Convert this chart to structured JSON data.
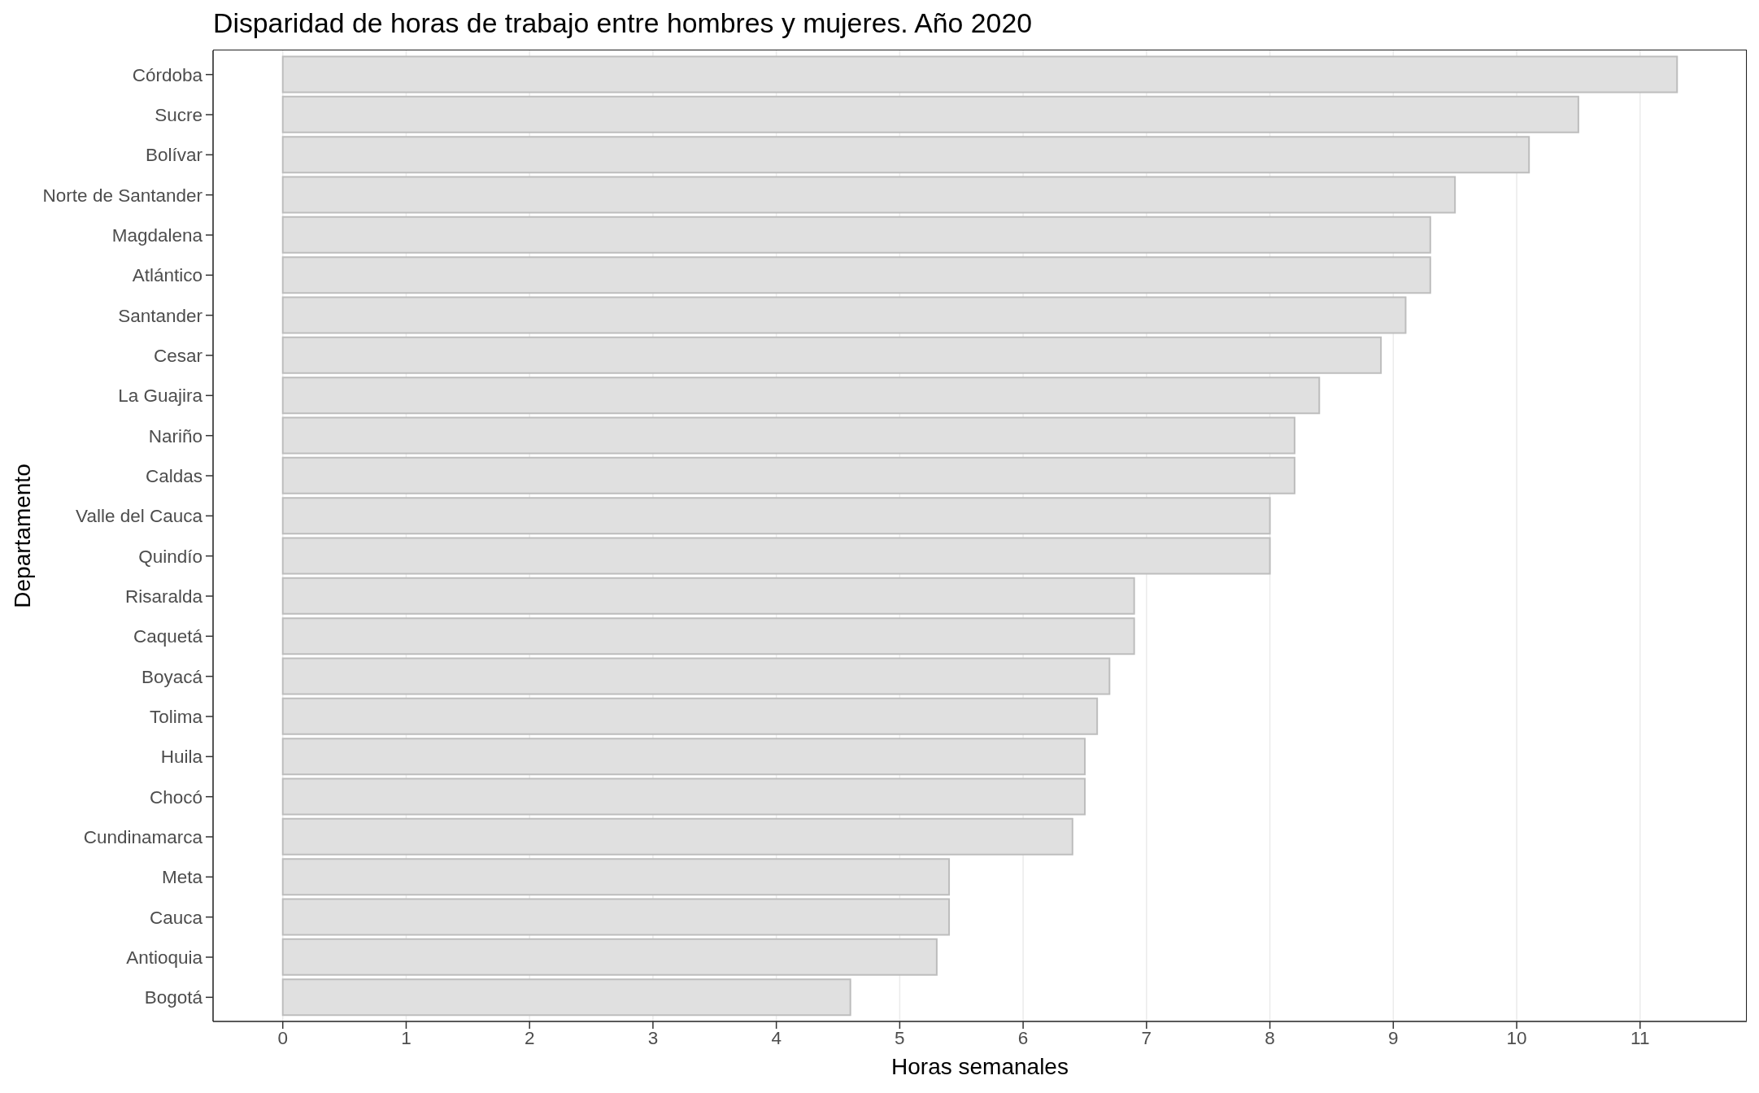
{
  "chart_data": {
    "type": "bar",
    "orientation": "horizontal",
    "title": "Disparidad de horas de trabajo entre hombres y mujeres. Año 2020",
    "xlabel": "Horas semanales",
    "ylabel": "Departamento",
    "categories": [
      "Córdoba",
      "Sucre",
      "Bolívar",
      "Norte de Santander",
      "Magdalena",
      "Atlántico",
      "Santander",
      "Cesar",
      "La Guajira",
      "Nariño",
      "Caldas",
      "Valle del Cauca",
      "Quindío",
      "Risaralda",
      "Caquetá",
      "Boyacá",
      "Tolima",
      "Huila",
      "Chocó",
      "Cundinamarca",
      "Meta",
      "Cauca",
      "Antioquia",
      "Bogotá"
    ],
    "values": [
      11.3,
      10.5,
      10.1,
      9.5,
      9.3,
      9.3,
      9.1,
      8.9,
      8.4,
      8.2,
      8.2,
      8.0,
      8.0,
      6.9,
      6.9,
      6.7,
      6.6,
      6.5,
      6.5,
      6.4,
      5.4,
      5.4,
      5.3,
      4.6
    ],
    "color": "#e0e0e0",
    "xlim": [
      -0.565,
      11.865
    ],
    "xticks": [
      0,
      1,
      2,
      3,
      4,
      5,
      6,
      7,
      8,
      9,
      10,
      11
    ],
    "grid": "x"
  }
}
